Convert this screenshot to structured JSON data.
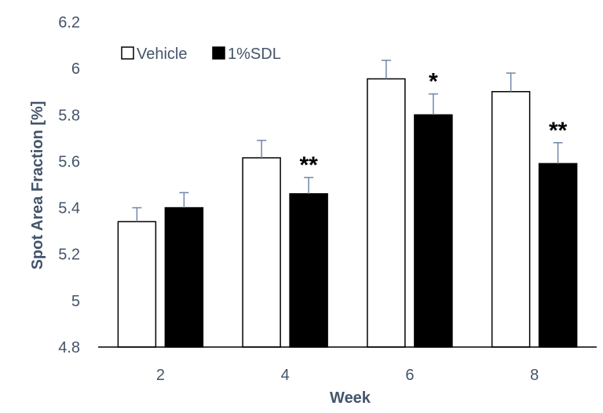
{
  "chart_data": {
    "type": "bar",
    "title": "",
    "xlabel": "Week",
    "ylabel": "Spot Area Fraction  [%]",
    "categories": [
      "2",
      "4",
      "6",
      "8"
    ],
    "ylim": [
      4.8,
      6.2
    ],
    "yticks": [
      "4.8",
      "5",
      "5.2",
      "5.4",
      "5.6",
      "5.8",
      "6",
      "6.2"
    ],
    "grid": false,
    "legend_position": "top-left",
    "series": [
      {
        "name": "Vehicle",
        "values": [
          5.34,
          5.615,
          5.955,
          5.9
        ],
        "error": [
          0.06,
          0.075,
          0.08,
          0.08
        ],
        "fill": "#ffffff",
        "stroke": "#000000"
      },
      {
        "name": "1%SDL",
        "values": [
          5.4,
          5.46,
          5.8,
          5.59
        ],
        "error": [
          0.065,
          0.07,
          0.09,
          0.09
        ],
        "fill": "#000000",
        "stroke": "#000000"
      }
    ],
    "significance": [
      "",
      "**",
      "*",
      "**"
    ],
    "colors": {
      "text": "#44546a",
      "axis": "#000000",
      "errorbar": "#6f87a9"
    }
  }
}
